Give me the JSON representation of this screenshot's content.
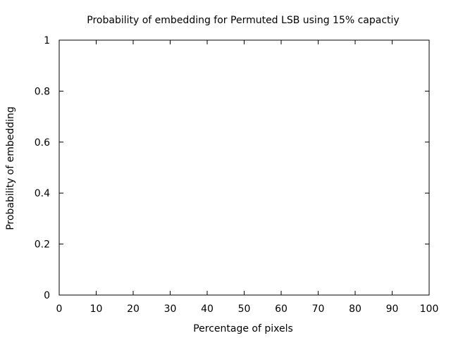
{
  "chart_data": {
    "type": "line",
    "title": "Probability of embedding for Permuted LSB using 15% capactiy",
    "xlabel": "Percentage of pixels",
    "ylabel": "Probability of embedding",
    "xlim": [
      0,
      100
    ],
    "ylim": [
      0,
      1
    ],
    "x_ticks": [
      0,
      10,
      20,
      30,
      40,
      50,
      60,
      70,
      80,
      90,
      100
    ],
    "x_tick_labels": [
      "0",
      "10",
      "20",
      "30",
      "40",
      "50",
      "60",
      "70",
      "80",
      "90",
      "100"
    ],
    "y_ticks": [
      0,
      0.2,
      0.4,
      0.6,
      0.8,
      1
    ],
    "y_tick_labels": [
      "0",
      "0.2",
      "0.4",
      "0.6",
      "0.8",
      "1"
    ],
    "grid": false,
    "legend": "none",
    "series": []
  }
}
